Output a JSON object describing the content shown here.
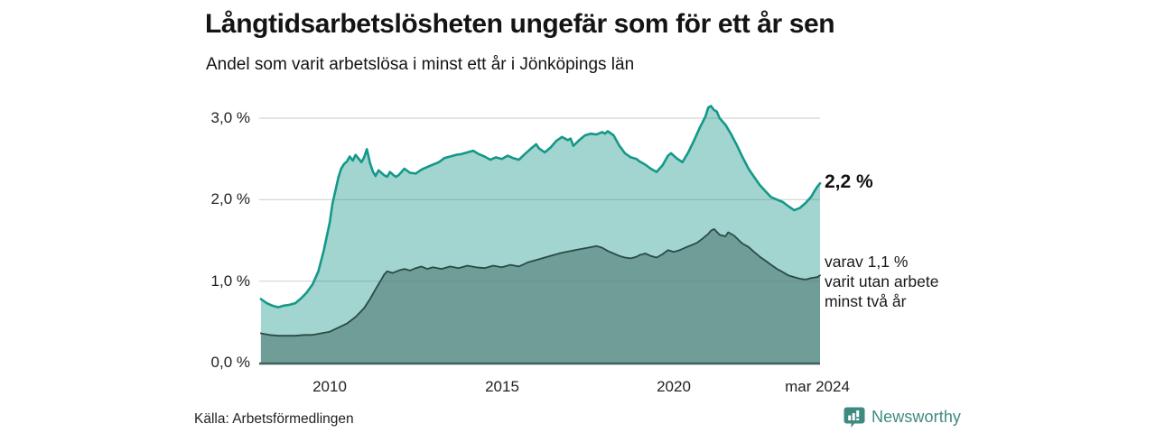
{
  "page": {
    "title": "Långtidsarbetslösheten ungefär som för ett år sen",
    "subtitle": "Andel som varit arbetslösa i minst ett år i Jönköpings län"
  },
  "chart_data": {
    "type": "area",
    "title": "Långtidsarbetslösheten ungefär som för ett år sen",
    "subtitle": "Andel som varit arbetslösa i minst ett år i Jönköpings län",
    "unit": "%",
    "xlim": [
      2007.95,
      2024.25
    ],
    "ylim": [
      0,
      3.25
    ],
    "grid": "horizontal",
    "legend_position": "none",
    "y_ticks": [
      {
        "value": 0,
        "label": "0,0 %"
      },
      {
        "value": 1,
        "label": "1,0 %"
      },
      {
        "value": 2,
        "label": "2,0 %"
      },
      {
        "value": 3,
        "label": "3,0 %"
      }
    ],
    "x_ticks": [
      {
        "value": 2010,
        "label": "2010"
      },
      {
        "value": 2015,
        "label": "2015"
      },
      {
        "value": 2020,
        "label": "2020"
      },
      {
        "value": 2024.17,
        "label": "mar 2024"
      }
    ],
    "series": [
      {
        "name": "Andel arbetslösa minst ett år",
        "line_color": "#149889",
        "fill_color": "#a2d5cf",
        "latest_value_pct": 2.2,
        "points": [
          [
            2008.0,
            0.78
          ],
          [
            2008.17,
            0.73
          ],
          [
            2008.33,
            0.7
          ],
          [
            2008.5,
            0.68
          ],
          [
            2008.67,
            0.7
          ],
          [
            2008.83,
            0.71
          ],
          [
            2009.0,
            0.73
          ],
          [
            2009.17,
            0.79
          ],
          [
            2009.33,
            0.86
          ],
          [
            2009.5,
            0.96
          ],
          [
            2009.67,
            1.12
          ],
          [
            2009.83,
            1.38
          ],
          [
            2010.0,
            1.72
          ],
          [
            2010.08,
            1.95
          ],
          [
            2010.17,
            2.12
          ],
          [
            2010.25,
            2.27
          ],
          [
            2010.33,
            2.38
          ],
          [
            2010.42,
            2.44
          ],
          [
            2010.5,
            2.47
          ],
          [
            2010.58,
            2.53
          ],
          [
            2010.67,
            2.48
          ],
          [
            2010.75,
            2.55
          ],
          [
            2010.83,
            2.51
          ],
          [
            2010.92,
            2.46
          ],
          [
            2011.0,
            2.52
          ],
          [
            2011.08,
            2.62
          ],
          [
            2011.17,
            2.45
          ],
          [
            2011.25,
            2.35
          ],
          [
            2011.33,
            2.29
          ],
          [
            2011.42,
            2.36
          ],
          [
            2011.5,
            2.33
          ],
          [
            2011.58,
            2.3
          ],
          [
            2011.67,
            2.28
          ],
          [
            2011.75,
            2.34
          ],
          [
            2011.83,
            2.31
          ],
          [
            2011.92,
            2.28
          ],
          [
            2012.0,
            2.3
          ],
          [
            2012.17,
            2.38
          ],
          [
            2012.33,
            2.33
          ],
          [
            2012.5,
            2.32
          ],
          [
            2012.67,
            2.37
          ],
          [
            2012.83,
            2.4
          ],
          [
            2013.0,
            2.43
          ],
          [
            2013.17,
            2.46
          ],
          [
            2013.33,
            2.51
          ],
          [
            2013.5,
            2.53
          ],
          [
            2013.67,
            2.55
          ],
          [
            2013.83,
            2.56
          ],
          [
            2014.0,
            2.58
          ],
          [
            2014.17,
            2.6
          ],
          [
            2014.33,
            2.56
          ],
          [
            2014.5,
            2.53
          ],
          [
            2014.67,
            2.49
          ],
          [
            2014.83,
            2.52
          ],
          [
            2015.0,
            2.5
          ],
          [
            2015.17,
            2.54
          ],
          [
            2015.33,
            2.51
          ],
          [
            2015.5,
            2.49
          ],
          [
            2015.67,
            2.56
          ],
          [
            2015.83,
            2.62
          ],
          [
            2016.0,
            2.68
          ],
          [
            2016.08,
            2.63
          ],
          [
            2016.25,
            2.58
          ],
          [
            2016.42,
            2.64
          ],
          [
            2016.58,
            2.72
          ],
          [
            2016.75,
            2.77
          ],
          [
            2016.92,
            2.73
          ],
          [
            2017.0,
            2.75
          ],
          [
            2017.08,
            2.66
          ],
          [
            2017.25,
            2.73
          ],
          [
            2017.42,
            2.79
          ],
          [
            2017.58,
            2.81
          ],
          [
            2017.75,
            2.8
          ],
          [
            2017.92,
            2.83
          ],
          [
            2018.0,
            2.81
          ],
          [
            2018.08,
            2.84
          ],
          [
            2018.25,
            2.79
          ],
          [
            2018.42,
            2.66
          ],
          [
            2018.58,
            2.57
          ],
          [
            2018.75,
            2.52
          ],
          [
            2018.92,
            2.5
          ],
          [
            2019.0,
            2.47
          ],
          [
            2019.17,
            2.43
          ],
          [
            2019.33,
            2.38
          ],
          [
            2019.5,
            2.34
          ],
          [
            2019.67,
            2.42
          ],
          [
            2019.83,
            2.54
          ],
          [
            2019.92,
            2.57
          ],
          [
            2020.08,
            2.51
          ],
          [
            2020.25,
            2.46
          ],
          [
            2020.42,
            2.58
          ],
          [
            2020.58,
            2.72
          ],
          [
            2020.75,
            2.88
          ],
          [
            2020.92,
            3.02
          ],
          [
            2021.0,
            3.13
          ],
          [
            2021.08,
            3.15
          ],
          [
            2021.17,
            3.1
          ],
          [
            2021.25,
            3.08
          ],
          [
            2021.33,
            3.0
          ],
          [
            2021.5,
            2.92
          ],
          [
            2021.67,
            2.8
          ],
          [
            2021.83,
            2.67
          ],
          [
            2022.0,
            2.52
          ],
          [
            2022.17,
            2.38
          ],
          [
            2022.33,
            2.28
          ],
          [
            2022.5,
            2.18
          ],
          [
            2022.67,
            2.1
          ],
          [
            2022.83,
            2.03
          ],
          [
            2023.0,
            2.0
          ],
          [
            2023.17,
            1.97
          ],
          [
            2023.33,
            1.92
          ],
          [
            2023.5,
            1.87
          ],
          [
            2023.67,
            1.9
          ],
          [
            2023.83,
            1.96
          ],
          [
            2024.0,
            2.04
          ],
          [
            2024.08,
            2.1
          ],
          [
            2024.17,
            2.16
          ],
          [
            2024.25,
            2.2
          ]
        ]
      },
      {
        "name": "Andel arbetslösa minst två år",
        "line_color": "#2b4a45",
        "fill_color": "#6f9d97",
        "latest_value_pct": 1.1,
        "points": [
          [
            2008.0,
            0.36
          ],
          [
            2008.25,
            0.34
          ],
          [
            2008.5,
            0.33
          ],
          [
            2008.75,
            0.33
          ],
          [
            2009.0,
            0.33
          ],
          [
            2009.25,
            0.34
          ],
          [
            2009.5,
            0.34
          ],
          [
            2009.75,
            0.36
          ],
          [
            2010.0,
            0.38
          ],
          [
            2010.25,
            0.43
          ],
          [
            2010.5,
            0.48
          ],
          [
            2010.75,
            0.56
          ],
          [
            2011.0,
            0.67
          ],
          [
            2011.17,
            0.78
          ],
          [
            2011.33,
            0.9
          ],
          [
            2011.5,
            1.02
          ],
          [
            2011.58,
            1.08
          ],
          [
            2011.67,
            1.12
          ],
          [
            2011.83,
            1.1
          ],
          [
            2012.0,
            1.13
          ],
          [
            2012.17,
            1.15
          ],
          [
            2012.33,
            1.13
          ],
          [
            2012.5,
            1.16
          ],
          [
            2012.67,
            1.18
          ],
          [
            2012.83,
            1.15
          ],
          [
            2013.0,
            1.17
          ],
          [
            2013.25,
            1.15
          ],
          [
            2013.5,
            1.18
          ],
          [
            2013.75,
            1.16
          ],
          [
            2014.0,
            1.19
          ],
          [
            2014.25,
            1.17
          ],
          [
            2014.5,
            1.16
          ],
          [
            2014.75,
            1.19
          ],
          [
            2015.0,
            1.17
          ],
          [
            2015.25,
            1.2
          ],
          [
            2015.5,
            1.18
          ],
          [
            2015.75,
            1.23
          ],
          [
            2016.0,
            1.26
          ],
          [
            2016.25,
            1.29
          ],
          [
            2016.5,
            1.32
          ],
          [
            2016.75,
            1.35
          ],
          [
            2017.0,
            1.37
          ],
          [
            2017.25,
            1.39
          ],
          [
            2017.5,
            1.41
          ],
          [
            2017.75,
            1.43
          ],
          [
            2017.92,
            1.41
          ],
          [
            2018.08,
            1.37
          ],
          [
            2018.25,
            1.34
          ],
          [
            2018.42,
            1.31
          ],
          [
            2018.58,
            1.29
          ],
          [
            2018.75,
            1.28
          ],
          [
            2018.92,
            1.3
          ],
          [
            2019.0,
            1.32
          ],
          [
            2019.17,
            1.34
          ],
          [
            2019.33,
            1.31
          ],
          [
            2019.5,
            1.29
          ],
          [
            2019.67,
            1.33
          ],
          [
            2019.83,
            1.38
          ],
          [
            2020.0,
            1.36
          ],
          [
            2020.17,
            1.38
          ],
          [
            2020.33,
            1.41
          ],
          [
            2020.5,
            1.44
          ],
          [
            2020.67,
            1.47
          ],
          [
            2020.83,
            1.52
          ],
          [
            2021.0,
            1.58
          ],
          [
            2021.08,
            1.62
          ],
          [
            2021.17,
            1.64
          ],
          [
            2021.33,
            1.57
          ],
          [
            2021.5,
            1.55
          ],
          [
            2021.58,
            1.6
          ],
          [
            2021.75,
            1.56
          ],
          [
            2021.92,
            1.49
          ],
          [
            2022.0,
            1.46
          ],
          [
            2022.17,
            1.42
          ],
          [
            2022.33,
            1.36
          ],
          [
            2022.5,
            1.3
          ],
          [
            2022.67,
            1.25
          ],
          [
            2022.83,
            1.2
          ],
          [
            2023.0,
            1.15
          ],
          [
            2023.17,
            1.11
          ],
          [
            2023.33,
            1.07
          ],
          [
            2023.5,
            1.05
          ],
          [
            2023.67,
            1.03
          ],
          [
            2023.83,
            1.02
          ],
          [
            2024.0,
            1.04
          ],
          [
            2024.17,
            1.05
          ],
          [
            2024.25,
            1.07
          ]
        ]
      }
    ],
    "annotations": {
      "latest_value": "2,2 %",
      "secondary_lines": [
        "varav 1,1 %",
        "varit utan arbete",
        "minst två år"
      ]
    }
  },
  "footer": {
    "source": "Källa: Arbetsförmedlingen",
    "brand_name": "Newsworthy"
  },
  "colors": {
    "accent_teal": "#149889",
    "light_fill": "#a2d5cf",
    "dark_fill": "#6f9d97",
    "dark_line": "#2b4a45",
    "gridline": "#d8d8d8",
    "baseline": "#40605b",
    "brand": "#3f8a80",
    "text": "#141414"
  }
}
